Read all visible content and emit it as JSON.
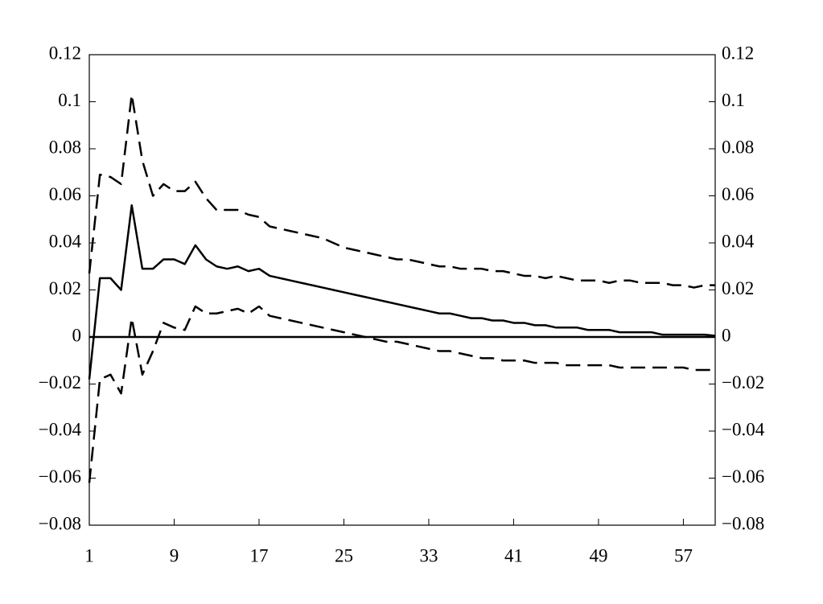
{
  "chart_data": {
    "type": "line",
    "x": [
      1,
      2,
      3,
      4,
      5,
      6,
      7,
      8,
      9,
      10,
      11,
      12,
      13,
      14,
      15,
      16,
      17,
      18,
      19,
      20,
      21,
      22,
      23,
      24,
      25,
      26,
      27,
      28,
      29,
      30,
      31,
      32,
      33,
      34,
      35,
      36,
      37,
      38,
      39,
      40,
      41,
      42,
      43,
      44,
      45,
      46,
      47,
      48,
      49,
      50,
      51,
      52,
      53,
      54,
      55,
      56,
      57,
      58,
      59,
      60
    ],
    "series": [
      {
        "color": "#000000",
        "dashed": false,
        "values": [
          -0.018,
          0.025,
          0.025,
          0.02,
          0.056,
          0.029,
          0.029,
          0.033,
          0.033,
          0.031,
          0.039,
          0.033,
          0.03,
          0.029,
          0.03,
          0.028,
          0.029,
          0.026,
          0.025,
          0.024,
          0.023,
          0.022,
          0.021,
          0.02,
          0.019,
          0.018,
          0.017,
          0.016,
          0.015,
          0.014,
          0.013,
          0.012,
          0.011,
          0.01,
          0.01,
          0.009,
          0.008,
          0.008,
          0.007,
          0.007,
          0.006,
          0.006,
          0.005,
          0.005,
          0.004,
          0.004,
          0.004,
          0.003,
          0.003,
          0.003,
          0.002,
          0.002,
          0.002,
          0.002,
          0.001,
          0.001,
          0.001,
          0.001,
          0.001,
          0.0005
        ]
      },
      {
        "color": "#000000",
        "dashed": true,
        "values": [
          0.027,
          0.069,
          0.068,
          0.065,
          0.103,
          0.075,
          0.06,
          0.065,
          0.062,
          0.062,
          0.066,
          0.059,
          0.054,
          0.054,
          0.054,
          0.052,
          0.051,
          0.047,
          0.046,
          0.045,
          0.044,
          0.043,
          0.042,
          0.04,
          0.038,
          0.037,
          0.036,
          0.035,
          0.034,
          0.033,
          0.033,
          0.032,
          0.031,
          0.03,
          0.03,
          0.029,
          0.029,
          0.029,
          0.028,
          0.028,
          0.027,
          0.026,
          0.026,
          0.025,
          0.026,
          0.025,
          0.024,
          0.024,
          0.024,
          0.023,
          0.024,
          0.024,
          0.023,
          0.023,
          0.023,
          0.022,
          0.022,
          0.021,
          0.022,
          0.022
        ]
      },
      {
        "color": "#000000",
        "dashed": true,
        "values": [
          -0.062,
          -0.018,
          -0.016,
          -0.024,
          0.008,
          -0.016,
          -0.006,
          0.006,
          0.004,
          0.003,
          0.013,
          0.01,
          0.01,
          0.011,
          0.012,
          0.01,
          0.013,
          0.009,
          0.008,
          0.007,
          0.006,
          0.005,
          0.004,
          0.003,
          0.002,
          0.001,
          0.0,
          -0.001,
          -0.002,
          -0.002,
          -0.003,
          -0.004,
          -0.005,
          -0.006,
          -0.006,
          -0.007,
          -0.008,
          -0.009,
          -0.009,
          -0.01,
          -0.01,
          -0.01,
          -0.011,
          -0.011,
          -0.011,
          -0.012,
          -0.012,
          -0.012,
          -0.012,
          -0.012,
          -0.013,
          -0.013,
          -0.013,
          -0.013,
          -0.013,
          -0.013,
          -0.013,
          -0.014,
          -0.014,
          -0.014
        ]
      }
    ],
    "xlim": [
      1,
      60
    ],
    "xticks": [
      1,
      9,
      17,
      25,
      33,
      41,
      49,
      57
    ],
    "ylim": [
      -0.08,
      0.12
    ],
    "yticks": [
      {
        "value": -0.08,
        "label": "−0.08"
      },
      {
        "value": -0.06,
        "label": "−0.06"
      },
      {
        "value": -0.04,
        "label": "−0.04"
      },
      {
        "value": -0.02,
        "label": "−0.02"
      },
      0,
      0.02,
      0.04,
      0.06,
      0.08,
      0.1,
      0.12
    ],
    "y2lim": [
      -0.08,
      0.12
    ],
    "y2ticks": [
      {
        "value": -0.08,
        "label": "−0.08"
      },
      {
        "value": -0.06,
        "label": "−0.06"
      },
      {
        "value": -0.04,
        "label": "−0.04"
      },
      {
        "value": -0.02,
        "label": "−0.02"
      },
      0,
      0.02,
      0.04,
      0.06,
      0.08,
      0.1,
      0.12
    ],
    "grid": false
  }
}
